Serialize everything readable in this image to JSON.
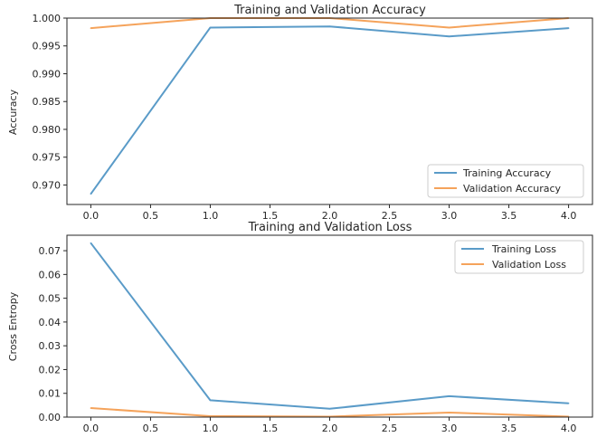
{
  "chart_data": [
    {
      "type": "line",
      "title": "Training and Validation Accuracy",
      "xlabel": "",
      "ylabel": "Accuracy",
      "x": [
        0,
        1,
        2,
        3,
        4
      ],
      "xticks": [
        "0.0",
        "0.5",
        "1.0",
        "1.5",
        "2.0",
        "2.5",
        "3.0",
        "3.5",
        "4.0"
      ],
      "xtick_values": [
        0,
        0.5,
        1,
        1.5,
        2,
        2.5,
        3,
        3.5,
        4
      ],
      "yticks": [
        "0.970",
        "0.975",
        "0.980",
        "0.985",
        "0.990",
        "0.995",
        "1.000"
      ],
      "ytick_values": [
        0.97,
        0.975,
        0.98,
        0.985,
        0.99,
        0.995,
        1.0
      ],
      "xlim": [
        -0.2,
        4.2
      ],
      "ylim": [
        0.9665,
        1.0
      ],
      "legend_position": "lower-right",
      "series": [
        {
          "name": "Training Accuracy",
          "color": "#5a9bc8",
          "values": [
            0.9684,
            0.9983,
            0.9985,
            0.9967,
            0.9982
          ]
        },
        {
          "name": "Validation Accuracy",
          "color": "#f5a35b",
          "values": [
            0.9982,
            1.0,
            1.0,
            0.9983,
            1.0
          ]
        }
      ]
    },
    {
      "type": "line",
      "title": "Training and Validation Loss",
      "xlabel": "",
      "ylabel": "Cross Entropy",
      "x": [
        0,
        1,
        2,
        3,
        4
      ],
      "xticks": [
        "0.0",
        "0.5",
        "1.0",
        "1.5",
        "2.0",
        "2.5",
        "3.0",
        "3.5",
        "4.0"
      ],
      "xtick_values": [
        0,
        0.5,
        1,
        1.5,
        2,
        2.5,
        3,
        3.5,
        4
      ],
      "yticks": [
        "0.00",
        "0.01",
        "0.02",
        "0.03",
        "0.04",
        "0.05",
        "0.06",
        "0.07"
      ],
      "ytick_values": [
        0,
        0.01,
        0.02,
        0.03,
        0.04,
        0.05,
        0.06,
        0.07
      ],
      "xlim": [
        -0.2,
        4.2
      ],
      "ylim": [
        0.0,
        0.0765
      ],
      "legend_position": "upper-right",
      "series": [
        {
          "name": "Training Loss",
          "color": "#5a9bc8",
          "values": [
            0.0732,
            0.0071,
            0.0035,
            0.0088,
            0.0058
          ]
        },
        {
          "name": "Validation Loss",
          "color": "#f5a35b",
          "values": [
            0.0038,
            0.0004,
            0.0002,
            0.0019,
            0.0002
          ]
        }
      ]
    }
  ]
}
